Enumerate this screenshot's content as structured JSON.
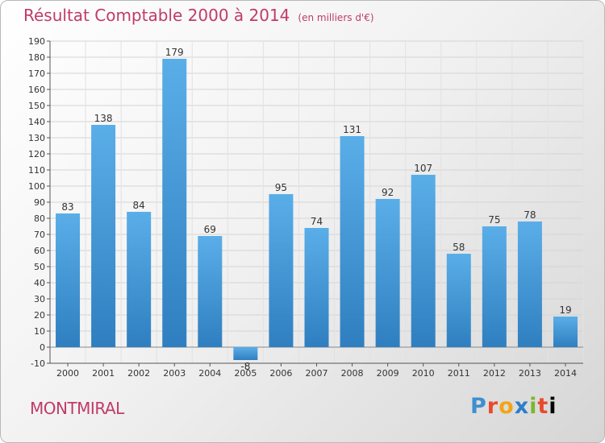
{
  "header": {
    "title": "Résultat Comptable 2000 à 2014",
    "subtitle": "(en milliers d'€)"
  },
  "place_name": "MONTMIRAL",
  "logo_text": "Proxiti",
  "colors": {
    "title": "#c03b68",
    "bar_light": "#5aaee8",
    "bar_dark": "#2f7fc0"
  },
  "chart_data": {
    "type": "bar",
    "categories": [
      "2000",
      "2001",
      "2002",
      "2003",
      "2004",
      "2005",
      "2006",
      "2007",
      "2008",
      "2009",
      "2010",
      "2011",
      "2012",
      "2013",
      "2014"
    ],
    "values": [
      83,
      138,
      84,
      179,
      69,
      -8,
      95,
      74,
      131,
      92,
      107,
      58,
      75,
      78,
      19
    ],
    "data_labels": [
      "83",
      "138",
      "84",
      "179",
      "69",
      "-8",
      "95",
      "74",
      "131",
      "92",
      "107",
      "58",
      "75",
      "78",
      "19"
    ],
    "ylim": [
      -10,
      190
    ],
    "y_ticks": [
      -10,
      0,
      10,
      20,
      30,
      40,
      50,
      60,
      70,
      80,
      90,
      100,
      110,
      120,
      130,
      140,
      150,
      160,
      170,
      180,
      190
    ],
    "grid": true,
    "legend": "none"
  }
}
